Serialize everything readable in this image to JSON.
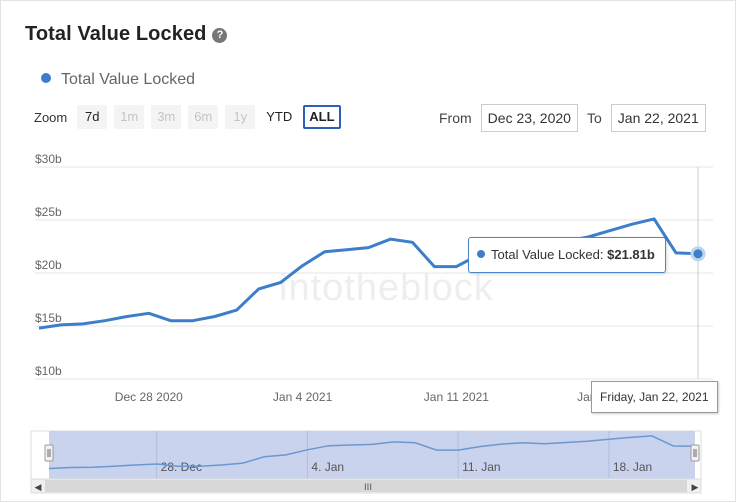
{
  "header": {
    "title": "Total Value Locked",
    "help_icon": "question-circle-icon"
  },
  "legend": {
    "label": "Total Value Locked",
    "color": "#3d7ecb"
  },
  "zoom": {
    "label": "Zoom",
    "buttons": [
      "7d",
      "1m",
      "3m",
      "6m",
      "1y",
      "YTD",
      "ALL"
    ],
    "disabled": [
      "1m",
      "3m",
      "6m",
      "1y"
    ],
    "active": "ALL"
  },
  "range": {
    "from_label": "From",
    "from_value": "Dec 23, 2020",
    "to_label": "To",
    "to_value": "Jan 22, 2021"
  },
  "watermark": "intotheblock",
  "tooltip": {
    "series": "Total Value Locked:",
    "value": "$21.81b",
    "date": "Friday, Jan 22, 2021"
  },
  "chart_data": {
    "type": "line",
    "title": "Total Value Locked",
    "series": [
      {
        "name": "Total Value Locked",
        "x": [
          "2020-12-23",
          "2020-12-24",
          "2020-12-25",
          "2020-12-26",
          "2020-12-27",
          "2020-12-28",
          "2020-12-29",
          "2020-12-30",
          "2020-12-31",
          "2021-01-01",
          "2021-01-02",
          "2021-01-03",
          "2021-01-04",
          "2021-01-05",
          "2021-01-06",
          "2021-01-07",
          "2021-01-08",
          "2021-01-09",
          "2021-01-10",
          "2021-01-11",
          "2021-01-12",
          "2021-01-13",
          "2021-01-14",
          "2021-01-15",
          "2021-01-16",
          "2021-01-17",
          "2021-01-18",
          "2021-01-19",
          "2021-01-20",
          "2021-01-21",
          "2021-01-22"
        ],
        "values": [
          14.8,
          15.1,
          15.2,
          15.5,
          15.9,
          16.2,
          15.5,
          15.5,
          15.9,
          16.5,
          18.5,
          19.1,
          20.7,
          22.0,
          22.2,
          22.4,
          23.2,
          22.9,
          20.6,
          20.6,
          21.7,
          22.5,
          22.9,
          22.6,
          23.0,
          23.4,
          24.0,
          24.6,
          25.1,
          21.9,
          21.81
        ]
      }
    ],
    "y_ticks": [
      "$10b",
      "$15b",
      "$20b",
      "$25b",
      "$30b"
    ],
    "ylim": [
      10,
      30
    ],
    "x_ticks": [
      {
        "date": "2020-12-28",
        "label": "Dec 28 2020"
      },
      {
        "date": "2021-01-04",
        "label": "Jan 4 2021"
      },
      {
        "date": "2021-01-11",
        "label": "Jan 11 2021"
      },
      {
        "date": "2021-01-18",
        "label": "Jan 18 2021"
      }
    ],
    "navigator_ticks": [
      {
        "date": "2020-12-28",
        "label": "28. Dec"
      },
      {
        "date": "2021-01-04",
        "label": "4. Jan"
      },
      {
        "date": "2021-01-11",
        "label": "11. Jan"
      },
      {
        "date": "2021-01-18",
        "label": "18. Jan"
      }
    ],
    "grid": true,
    "legend_position": "top-left"
  }
}
